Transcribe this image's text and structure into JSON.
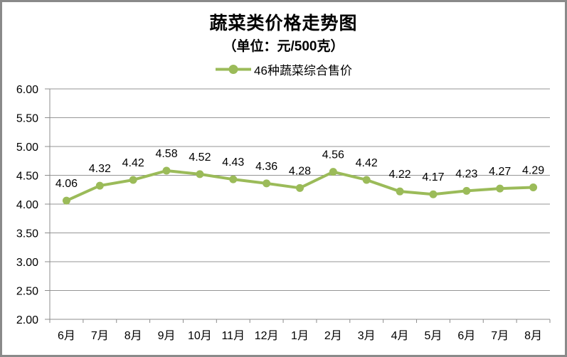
{
  "chart_data": {
    "type": "line",
    "title": "蔬菜类价格走势图",
    "subtitle": "（单位：元/500克）",
    "categories": [
      "6月",
      "7月",
      "8月",
      "9月",
      "10月",
      "11月",
      "12月",
      "1月",
      "2月",
      "3月",
      "4月",
      "5月",
      "6月",
      "7月",
      "8月"
    ],
    "series": [
      {
        "name": "46种蔬菜综合售价",
        "values": [
          4.06,
          4.32,
          4.42,
          4.58,
          4.52,
          4.43,
          4.36,
          4.28,
          4.56,
          4.42,
          4.22,
          4.17,
          4.23,
          4.27,
          4.29
        ]
      }
    ],
    "ylim": [
      2.0,
      6.0
    ],
    "ytick_step": 0.5,
    "ytick_labels": [
      "6.00",
      "5.50",
      "5.00",
      "4.50",
      "4.00",
      "3.50",
      "3.00",
      "2.50",
      "2.00"
    ],
    "xlabel": "",
    "ylabel": "",
    "grid": true,
    "data_labels": true,
    "legend_position": "top",
    "colors": {
      "line": "#9BBB59",
      "marker": "#9BBB59",
      "grid": "#969696",
      "axis": "#8C8C8C",
      "text": "#000000",
      "frame_border": "#8A8A8A"
    }
  }
}
